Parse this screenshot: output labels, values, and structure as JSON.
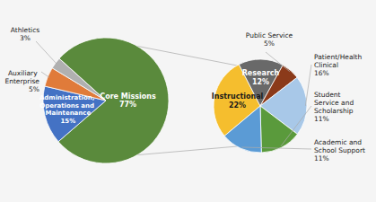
{
  "chart_data": [
    {
      "type": "pie",
      "categories": [
        "Core Missions",
        "Administration, Operations and Maintenance",
        "Auxiliary Enterprise",
        "Athletics"
      ],
      "values": [
        77,
        15,
        5,
        3
      ],
      "value_labels": [
        "77%",
        "15%",
        "5%",
        "3%"
      ],
      "colors": [
        "#5a8a3c",
        "#4472c4",
        "#e07b3a",
        "#b0b0b0"
      ]
    },
    {
      "type": "pie",
      "categories": [
        "Instructional",
        "Research",
        "Public Service",
        "Patient/Health Clinical",
        "Student Service and Scholarship",
        "Academic and School Support"
      ],
      "values": [
        22,
        12,
        5,
        16,
        11,
        11
      ],
      "value_labels": [
        "22%",
        "12%",
        "5%",
        "16%",
        "11%",
        "11%"
      ],
      "colors": [
        "#f5be2e",
        "#696969",
        "#8b3a1a",
        "#a8c8e8",
        "#5a9a3c",
        "#5b9bd5"
      ]
    }
  ]
}
